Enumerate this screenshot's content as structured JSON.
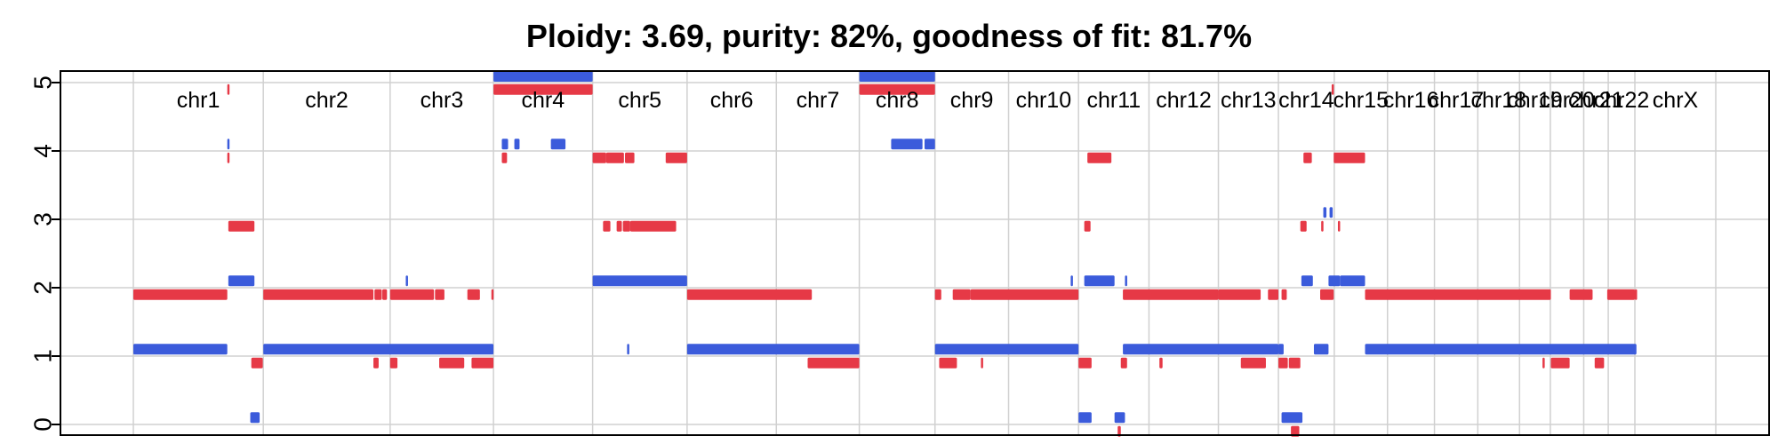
{
  "chart_data": {
    "type": "segment",
    "title": "Ploidy: 3.69, purity: 82%, goodness of fit: 81.7%",
    "xlabel": "",
    "ylabel": "",
    "ylim": [
      0,
      5
    ],
    "yticks": [
      0,
      1,
      2,
      3,
      4,
      5
    ],
    "grid": true,
    "colors": {
      "major": "#e63946",
      "minor": "#3b5bdb"
    },
    "chromosomes": [
      {
        "name": "chr1",
        "start": 0,
        "end": 249
      },
      {
        "name": "chr2",
        "start": 249,
        "end": 492
      },
      {
        "name": "chr3",
        "start": 492,
        "end": 690
      },
      {
        "name": "chr4",
        "start": 690,
        "end": 880
      },
      {
        "name": "chr5",
        "start": 880,
        "end": 1061
      },
      {
        "name": "chr6",
        "start": 1061,
        "end": 1232
      },
      {
        "name": "chr7",
        "start": 1232,
        "end": 1391
      },
      {
        "name": "chr8",
        "start": 1391,
        "end": 1536
      },
      {
        "name": "chr9",
        "start": 1536,
        "end": 1677
      },
      {
        "name": "chr10",
        "start": 1677,
        "end": 1811
      },
      {
        "name": "chr11",
        "start": 1811,
        "end": 1946
      },
      {
        "name": "chr12",
        "start": 1946,
        "end": 2079
      },
      {
        "name": "chr13",
        "start": 2079,
        "end": 2194
      },
      {
        "name": "chr14",
        "start": 2194,
        "end": 2301
      },
      {
        "name": "chr15",
        "start": 2301,
        "end": 2403
      },
      {
        "name": "chr16",
        "start": 2403,
        "end": 2493
      },
      {
        "name": "chr17",
        "start": 2493,
        "end": 2576
      },
      {
        "name": "chr18",
        "start": 2576,
        "end": 2656
      },
      {
        "name": "chr19",
        "start": 2656,
        "end": 2715
      },
      {
        "name": "chr20",
        "start": 2715,
        "end": 2779
      },
      {
        "name": "chr21",
        "start": 2779,
        "end": 2826
      },
      {
        "name": "chr22",
        "start": 2826,
        "end": 2877
      },
      {
        "name": "chrX",
        "start": 2877,
        "end": 3032
      }
    ],
    "segments": [
      {
        "series": "major",
        "x0": 0,
        "x1": 180,
        "y": 1.9
      },
      {
        "series": "major",
        "x0": 180,
        "x1": 183,
        "y": 4.9
      },
      {
        "series": "major",
        "x0": 180,
        "x1": 183,
        "y": 3.9
      },
      {
        "series": "major",
        "x0": 182,
        "x1": 232,
        "y": 2.9
      },
      {
        "series": "major",
        "x0": 226,
        "x1": 248,
        "y": 0.9
      },
      {
        "series": "major",
        "x0": 249,
        "x1": 460,
        "y": 1.9
      },
      {
        "series": "major",
        "x0": 462,
        "x1": 476,
        "y": 1.9
      },
      {
        "series": "major",
        "x0": 460,
        "x1": 470,
        "y": 0.9
      },
      {
        "series": "major",
        "x0": 477,
        "x1": 486,
        "y": 1.9
      },
      {
        "series": "major",
        "x0": 492,
        "x1": 576,
        "y": 1.9
      },
      {
        "series": "major",
        "x0": 492,
        "x1": 506,
        "y": 0.9
      },
      {
        "series": "major",
        "x0": 578,
        "x1": 596,
        "y": 1.9
      },
      {
        "series": "major",
        "x0": 586,
        "x1": 634,
        "y": 0.9
      },
      {
        "series": "major",
        "x0": 640,
        "x1": 664,
        "y": 1.9
      },
      {
        "series": "major",
        "x0": 648,
        "x1": 690,
        "y": 0.9
      },
      {
        "series": "major",
        "x0": 686,
        "x1": 690,
        "y": 1.9
      },
      {
        "series": "major",
        "x0": 690,
        "x1": 880,
        "y": 4.9
      },
      {
        "series": "major",
        "x0": 706,
        "x1": 716,
        "y": 3.9
      },
      {
        "series": "major",
        "x0": 880,
        "x1": 906,
        "y": 3.9
      },
      {
        "series": "major",
        "x0": 906,
        "x1": 940,
        "y": 3.9
      },
      {
        "series": "major",
        "x0": 942,
        "x1": 960,
        "y": 3.9
      },
      {
        "series": "major",
        "x0": 1020,
        "x1": 1061,
        "y": 3.9
      },
      {
        "series": "major",
        "x0": 900,
        "x1": 914,
        "y": 2.9
      },
      {
        "series": "major",
        "x0": 926,
        "x1": 936,
        "y": 2.9
      },
      {
        "series": "major",
        "x0": 938,
        "x1": 952,
        "y": 2.9
      },
      {
        "series": "major",
        "x0": 952,
        "x1": 1040,
        "y": 2.9
      },
      {
        "series": "major",
        "x0": 1061,
        "x1": 1300,
        "y": 1.9
      },
      {
        "series": "major",
        "x0": 1292,
        "x1": 1391,
        "y": 0.9
      },
      {
        "series": "major",
        "x0": 1391,
        "x1": 1536,
        "y": 4.9
      },
      {
        "series": "major",
        "x0": 1536,
        "x1": 1548,
        "y": 1.9
      },
      {
        "series": "major",
        "x0": 1570,
        "x1": 1604,
        "y": 1.9
      },
      {
        "series": "major",
        "x0": 1604,
        "x1": 1811,
        "y": 1.9
      },
      {
        "series": "major",
        "x0": 1544,
        "x1": 1578,
        "y": 0.9
      },
      {
        "series": "major",
        "x0": 1624,
        "x1": 1628,
        "y": 0.9
      },
      {
        "series": "major",
        "x0": 1811,
        "x1": 1836,
        "y": 0.9
      },
      {
        "series": "major",
        "x0": 1822,
        "x1": 1834,
        "y": 2.9
      },
      {
        "series": "major",
        "x0": 1828,
        "x1": 1874,
        "y": 3.9
      },
      {
        "series": "major",
        "x0": 1892,
        "x1": 1904,
        "y": 0.9
      },
      {
        "series": "major",
        "x0": 1886,
        "x1": 1892,
        "y": -0.1
      },
      {
        "series": "major",
        "x0": 1896,
        "x1": 2079,
        "y": 1.9
      },
      {
        "series": "major",
        "x0": 1966,
        "x1": 1972,
        "y": 0.9
      },
      {
        "series": "major",
        "x0": 2079,
        "x1": 2160,
        "y": 1.9
      },
      {
        "series": "major",
        "x0": 2122,
        "x1": 2170,
        "y": 0.9
      },
      {
        "series": "major",
        "x0": 2174,
        "x1": 2194,
        "y": 1.9
      },
      {
        "series": "major",
        "x0": 2194,
        "x1": 2212,
        "y": 0.9
      },
      {
        "series": "major",
        "x0": 2200,
        "x1": 2210,
        "y": 1.9
      },
      {
        "series": "major",
        "x0": 2214,
        "x1": 2236,
        "y": 0.9
      },
      {
        "series": "major",
        "x0": 2218,
        "x1": 2234,
        "y": -0.1
      },
      {
        "series": "major",
        "x0": 2236,
        "x1": 2248,
        "y": 2.9
      },
      {
        "series": "major",
        "x0": 2242,
        "x1": 2258,
        "y": 3.9
      },
      {
        "series": "major",
        "x0": 2276,
        "x1": 2280,
        "y": 2.9
      },
      {
        "series": "major",
        "x0": 2274,
        "x1": 2300,
        "y": 1.9
      },
      {
        "series": "major",
        "x0": 2296,
        "x1": 2300,
        "y": 4.9
      },
      {
        "series": "major",
        "x0": 2308,
        "x1": 2312,
        "y": 2.9
      },
      {
        "series": "major",
        "x0": 2300,
        "x1": 2360,
        "y": 3.9
      },
      {
        "series": "major",
        "x0": 2360,
        "x1": 2716,
        "y": 1.9
      },
      {
        "series": "major",
        "x0": 2700,
        "x1": 2704,
        "y": 0.9
      },
      {
        "series": "major",
        "x0": 2716,
        "x1": 2752,
        "y": 0.9
      },
      {
        "series": "major",
        "x0": 2752,
        "x1": 2796,
        "y": 1.9
      },
      {
        "series": "major",
        "x0": 2800,
        "x1": 2818,
        "y": 0.9
      },
      {
        "series": "major",
        "x0": 2824,
        "x1": 2877,
        "y": 1.9
      },
      {
        "series": "major",
        "x0": 2877,
        "x1": 2880,
        "y": 1.9
      },
      {
        "series": "minor",
        "x0": 0,
        "x1": 180,
        "y": 1.1
      },
      {
        "series": "minor",
        "x0": 180,
        "x1": 183,
        "y": 4.1
      },
      {
        "series": "minor",
        "x0": 182,
        "x1": 232,
        "y": 2.1
      },
      {
        "series": "minor",
        "x0": 224,
        "x1": 242,
        "y": 0.1
      },
      {
        "series": "minor",
        "x0": 249,
        "x1": 690,
        "y": 1.1
      },
      {
        "series": "minor",
        "x0": 522,
        "x1": 526,
        "y": 2.1
      },
      {
        "series": "minor",
        "x0": 690,
        "x1": 880,
        "y": 5.1
      },
      {
        "series": "minor",
        "x0": 706,
        "x1": 718,
        "y": 4.1
      },
      {
        "series": "minor",
        "x0": 730,
        "x1": 740,
        "y": 4.1
      },
      {
        "series": "minor",
        "x0": 800,
        "x1": 828,
        "y": 4.1
      },
      {
        "series": "minor",
        "x0": 880,
        "x1": 1061,
        "y": 2.1
      },
      {
        "series": "minor",
        "x0": 946,
        "x1": 950,
        "y": 1.1
      },
      {
        "series": "minor",
        "x0": 1061,
        "x1": 1391,
        "y": 1.1
      },
      {
        "series": "minor",
        "x0": 1391,
        "x1": 1536,
        "y": 5.1
      },
      {
        "series": "minor",
        "x0": 1452,
        "x1": 1512,
        "y": 4.1
      },
      {
        "series": "minor",
        "x0": 1516,
        "x1": 1536,
        "y": 4.1
      },
      {
        "series": "minor",
        "x0": 1536,
        "x1": 1811,
        "y": 1.1
      },
      {
        "series": "minor",
        "x0": 1796,
        "x1": 1800,
        "y": 2.1
      },
      {
        "series": "minor",
        "x0": 1811,
        "x1": 1836,
        "y": 0.1
      },
      {
        "series": "minor",
        "x0": 1822,
        "x1": 1880,
        "y": 2.1
      },
      {
        "series": "minor",
        "x0": 1880,
        "x1": 1900,
        "y": 0.1
      },
      {
        "series": "minor",
        "x0": 1900,
        "x1": 1904,
        "y": 2.1
      },
      {
        "series": "minor",
        "x0": 1896,
        "x1": 2194,
        "y": 1.1
      },
      {
        "series": "minor",
        "x0": 2194,
        "x1": 2204,
        "y": 1.1
      },
      {
        "series": "minor",
        "x0": 2200,
        "x1": 2240,
        "y": 0.1
      },
      {
        "series": "minor",
        "x0": 2238,
        "x1": 2260,
        "y": 2.1
      },
      {
        "series": "minor",
        "x0": 2262,
        "x1": 2290,
        "y": 1.1
      },
      {
        "series": "minor",
        "x0": 2280,
        "x1": 2286,
        "y": 3.1
      },
      {
        "series": "minor",
        "x0": 2292,
        "x1": 2298,
        "y": 3.1
      },
      {
        "series": "minor",
        "x0": 2290,
        "x1": 2312,
        "y": 2.1
      },
      {
        "series": "minor",
        "x0": 2312,
        "x1": 2360,
        "y": 2.1
      },
      {
        "series": "minor",
        "x0": 2360,
        "x1": 2880,
        "y": 1.1
      }
    ]
  }
}
